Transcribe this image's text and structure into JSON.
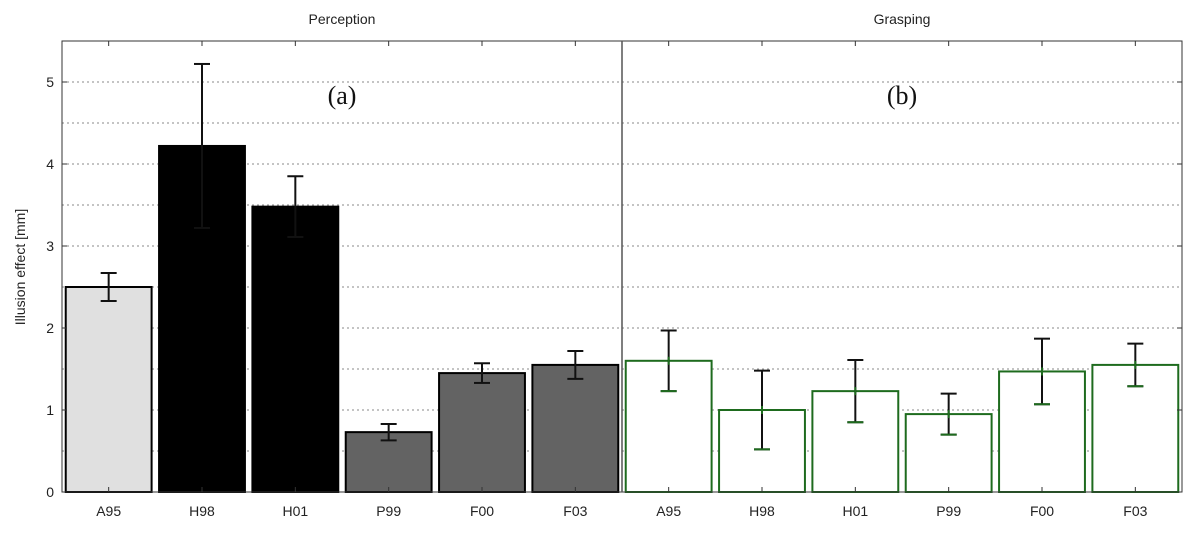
{
  "chart_data": {
    "type": "bar",
    "ylabel": "Illusion effect [mm]",
    "ylim": [
      0,
      5.5
    ],
    "yticks": [
      0,
      1,
      2,
      3,
      4,
      5
    ],
    "grid": true,
    "categories": [
      "A95",
      "H98",
      "H01",
      "P99",
      "F00",
      "F03"
    ],
    "panels": [
      {
        "title": "Perception",
        "annotation": "(a)",
        "values": [
          2.5,
          4.22,
          3.48,
          0.73,
          1.45,
          1.55
        ],
        "errors": [
          0.17,
          1.0,
          0.37,
          0.1,
          0.12,
          0.17
        ],
        "fill_colors": [
          "#e0e0e0",
          "#000000",
          "#000000",
          "#636363",
          "#636363",
          "#636363"
        ],
        "edge_colors": [
          "#000000",
          "#000000",
          "#000000",
          "#000000",
          "#000000",
          "#000000"
        ],
        "error_color": "#000000"
      },
      {
        "title": "Grasping",
        "annotation": "(b)",
        "values": [
          1.6,
          1.0,
          1.23,
          0.95,
          1.47,
          1.55
        ],
        "errors": [
          0.37,
          0.48,
          0.38,
          0.25,
          0.4,
          0.26
        ],
        "fill_colors": [
          "#ffffff",
          "#ffffff",
          "#ffffff",
          "#ffffff",
          "#ffffff",
          "#ffffff"
        ],
        "edge_colors": [
          "#1e6b1e",
          "#1e6b1e",
          "#1e6b1e",
          "#1e6b1e",
          "#1e6b1e",
          "#1e6b1e"
        ],
        "error_color": "#1e6b1e"
      }
    ]
  }
}
